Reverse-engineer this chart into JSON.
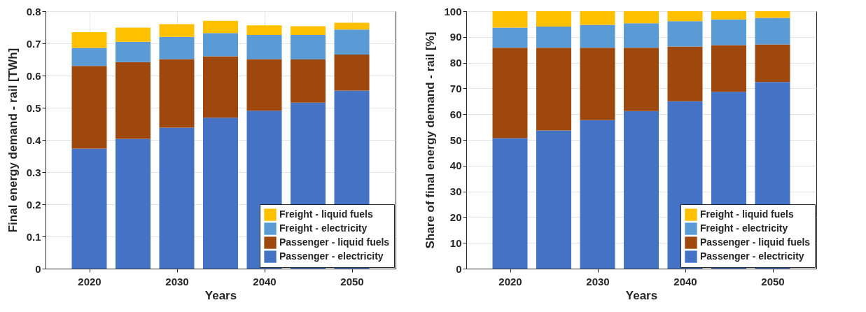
{
  "chart_data": [
    {
      "type": "bar",
      "stacked": true,
      "xlabel": "Years",
      "ylabel": "Final energy demand - rail [TWh]",
      "x": [
        2020,
        2025,
        2030,
        2035,
        2040,
        2045,
        2050
      ],
      "xlim": [
        2015,
        2055
      ],
      "xticks": [
        2020,
        2030,
        2040,
        2050
      ],
      "ylim": [
        0,
        0.8
      ],
      "yticks": [
        0,
        0.1,
        0.2,
        0.3,
        0.4,
        0.5,
        0.6,
        0.7,
        0.8
      ],
      "grid": true,
      "legend": "bottom right",
      "series": [
        {
          "name": "Passenger - electricity",
          "color": "#4472c4",
          "values": [
            0.373,
            0.403,
            0.438,
            0.469,
            0.491,
            0.516,
            0.553
          ]
        },
        {
          "name": "Passenger - liquid fuels",
          "color": "#9e480e",
          "values": [
            0.257,
            0.239,
            0.213,
            0.191,
            0.16,
            0.134,
            0.112
          ]
        },
        {
          "name": "Freight - electricity",
          "color": "#5b9bd5",
          "values": [
            0.056,
            0.063,
            0.069,
            0.072,
            0.075,
            0.076,
            0.078
          ]
        },
        {
          "name": "Freight - liquid fuels",
          "color": "#ffc000",
          "values": [
            0.049,
            0.044,
            0.04,
            0.038,
            0.03,
            0.027,
            0.021
          ]
        }
      ]
    },
    {
      "type": "bar",
      "stacked": true,
      "xlabel": "Years",
      "ylabel": "Share of final energy demand - rail [%]",
      "x": [
        2020,
        2025,
        2030,
        2035,
        2040,
        2045,
        2050
      ],
      "xlim": [
        2015,
        2055
      ],
      "xticks": [
        2020,
        2030,
        2040,
        2050
      ],
      "ylim": [
        0,
        100
      ],
      "yticks": [
        0,
        10,
        20,
        30,
        40,
        50,
        60,
        70,
        80,
        90,
        100
      ],
      "grid": true,
      "legend": "bottom right",
      "series": [
        {
          "name": "Passenger - electricity",
          "color": "#4472c4",
          "values": [
            50.7,
            53.7,
            57.7,
            61.2,
            65.0,
            68.7,
            72.5
          ]
        },
        {
          "name": "Passenger - liquid fuels",
          "color": "#9e480e",
          "values": [
            35.1,
            32.1,
            28.1,
            24.6,
            21.3,
            18.1,
            14.6
          ]
        },
        {
          "name": "Freight - electricity",
          "color": "#5b9bd5",
          "values": [
            7.8,
            8.2,
            8.9,
            9.5,
            9.8,
            10.0,
            10.3
          ]
        },
        {
          "name": "Freight - liquid fuels",
          "color": "#ffc000",
          "values": [
            6.4,
            6.0,
            5.3,
            4.7,
            3.9,
            3.2,
            2.6
          ]
        }
      ]
    }
  ]
}
